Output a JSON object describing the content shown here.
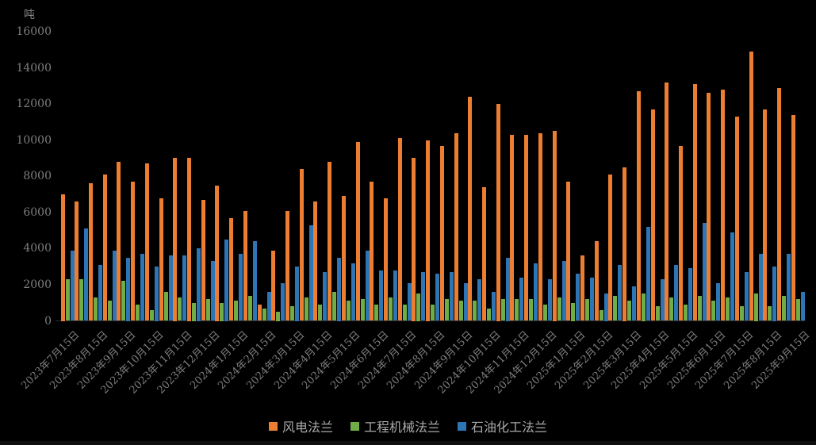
{
  "chart": {
    "unit_label": "吨",
    "y_axis": {
      "min": 0,
      "max": 16000,
      "step": 2000,
      "tick_labels": [
        "0",
        "2000",
        "4000",
        "6000",
        "8000",
        "10000",
        "12000",
        "14000",
        "16000"
      ]
    },
    "x_axis": {
      "visible_tick_labels": [
        "2023年7月15日",
        "2023年8月15日",
        "2023年9月15日",
        "2023年10月15日",
        "2023年11月15日",
        "2023年12月15日",
        "2024年1月15日",
        "2024年2月15日",
        "2024年3月15日",
        "2024年4月15日",
        "2024年5月15日",
        "2024年6月15日",
        "2024年7月15日",
        "2024年8月15日",
        "2024年9月15日",
        "2024年10月15日",
        "2024年11月15日",
        "2024年12月15日",
        "2025年1月15日",
        "2025年2月15日",
        "2025年3月15日",
        "2025年4月15日",
        "2025年5月15日",
        "2025年6月15日",
        "2025年7月15日",
        "2025年8月15日",
        "2025年9月15日"
      ],
      "label_interval": 2
    },
    "legend": {
      "items": [
        {
          "label": "风电法兰",
          "color": "#ED7D31"
        },
        {
          "label": "工程机械法兰",
          "color": "#70AD47"
        },
        {
          "label": "石油化工法兰",
          "color": "#2E75B6"
        }
      ],
      "position": "bottom"
    },
    "colors": {
      "background": "#000000",
      "axis_text": "#7f7f7f",
      "legend_text": "#aaaaaa"
    }
  },
  "chart_data": {
    "type": "bar",
    "title": "",
    "ylabel": "吨",
    "ylim": [
      0,
      16000
    ],
    "grid": false,
    "legend_position": "bottom",
    "categories": [
      "2023年7月15日",
      "2023年8月1日",
      "2023年8月15日",
      "2023年9月1日",
      "2023年9月15日",
      "2023年10月1日",
      "2023年10月15日",
      "2023年11月1日",
      "2023年11月15日",
      "2023年12月1日",
      "2023年12月15日",
      "2024年1月1日",
      "2024年1月15日",
      "2024年2月1日",
      "2024年2月15日",
      "2024年3月1日",
      "2024年3月15日",
      "2024年4月1日",
      "2024年4月15日",
      "2024年5月1日",
      "2024年5月15日",
      "2024年6月1日",
      "2024年6月15日",
      "2024年7月1日",
      "2024年7月15日",
      "2024年8月1日",
      "2024年8月15日",
      "2024年9月1日",
      "2024年9月15日",
      "2024年10月1日",
      "2024年10月15日",
      "2024年11月1日",
      "2024年11月15日",
      "2024年12月1日",
      "2024年12月15日",
      "2025年1月1日",
      "2025年1月15日",
      "2025年2月1日",
      "2025年2月15日",
      "2025年3月1日",
      "2025年3月15日",
      "2025年4月1日",
      "2025年4月15日",
      "2025年5月1日",
      "2025年5月15日",
      "2025年6月1日",
      "2025年6月15日",
      "2025年7月1日",
      "2025年7月15日",
      "2025年8月1日",
      "2025年8月15日",
      "2025年9月1日",
      "2025年9月15日"
    ],
    "series": [
      {
        "name": "风电法兰",
        "color": "#ED7D31",
        "values": [
          7000,
          6600,
          7600,
          8100,
          8800,
          7700,
          8700,
          6800,
          9000,
          9000,
          6700,
          7500,
          5700,
          6100,
          900,
          3900,
          6100,
          8400,
          6600,
          8800,
          6900,
          9900,
          7700,
          6800,
          10100,
          9000,
          10000,
          9700,
          10400,
          12400,
          7400,
          12000,
          10300,
          10300,
          10400,
          10500,
          7700,
          3600,
          4400,
          8100,
          8500,
          12700,
          11700,
          13200,
          9700,
          13100,
          12600,
          12800,
          11300,
          14900,
          11700,
          12900,
          11400
        ]
      },
      {
        "name": "工程机械法兰",
        "color": "#70AD47",
        "values": [
          2300,
          2300,
          1300,
          1100,
          2200,
          900,
          600,
          1600,
          1300,
          1000,
          1200,
          1000,
          1100,
          1400,
          700,
          500,
          800,
          1300,
          900,
          1600,
          1100,
          1200,
          900,
          1300,
          900,
          1500,
          900,
          1200,
          1100,
          1100,
          700,
          1200,
          1200,
          1200,
          900,
          1300,
          1000,
          1200,
          600,
          1400,
          1100,
          1500,
          800,
          1300,
          900,
          1400,
          1100,
          1300,
          800,
          1500,
          800,
          1400,
          1200
        ]
      },
      {
        "name": "石油化工法兰",
        "color": "#2E75B6",
        "values": [
          3900,
          5100,
          3100,
          3900,
          3500,
          3700,
          3000,
          3600,
          3600,
          4000,
          3300,
          4500,
          3700,
          4400,
          1600,
          2100,
          3000,
          5300,
          2700,
          3500,
          3200,
          3900,
          2800,
          2800,
          2100,
          2700,
          2600,
          2700,
          2100,
          2300,
          1600,
          3500,
          2400,
          3200,
          2300,
          3300,
          2600,
          2400,
          1500,
          3100,
          1900,
          5200,
          2300,
          3100,
          2900,
          5400,
          2100,
          4900,
          2700,
          3700,
          3000,
          3700,
          1600
        ]
      }
    ]
  }
}
